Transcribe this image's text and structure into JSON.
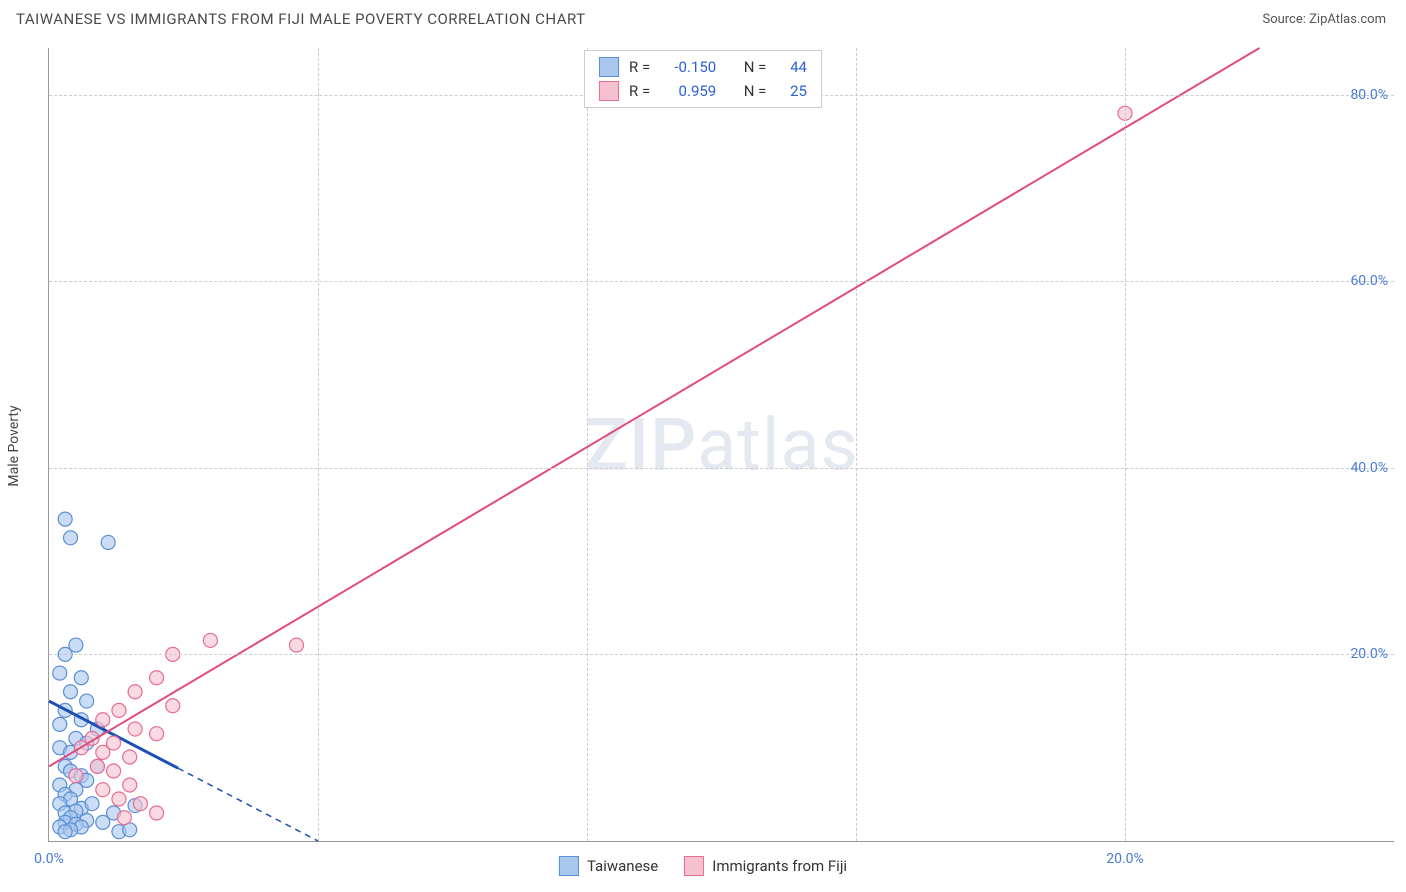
{
  "header": {
    "title": "TAIWANESE VS IMMIGRANTS FROM FIJI MALE POVERTY CORRELATION CHART",
    "source": "Source: ZipAtlas.com"
  },
  "axes": {
    "ylabel": "Male Poverty",
    "xlim": [
      0,
      25
    ],
    "ylim": [
      0,
      85
    ],
    "yticks": [
      {
        "v": 20,
        "label": "20.0%"
      },
      {
        "v": 40,
        "label": "40.0%"
      },
      {
        "v": 60,
        "label": "60.0%"
      },
      {
        "v": 80,
        "label": "80.0%"
      }
    ],
    "xticks": [
      {
        "v": 0,
        "label": "0.0%"
      },
      {
        "v": 20,
        "label": "20.0%"
      }
    ],
    "grid_v": [
      5,
      10,
      15,
      20
    ],
    "grid_color": "#cccccc",
    "axis_color": "#999999",
    "tick_color": "#4a7bd0"
  },
  "series": [
    {
      "key": "taiwanese",
      "label": "Taiwanese",
      "R": "-0.150",
      "N": "44",
      "fill": "#a9c6ec",
      "stroke": "#5a8fd6",
      "line_color": "#1b4fb5",
      "marker_r": 7,
      "marker_opacity": 0.6,
      "trend": {
        "x1": 0,
        "y1": 15,
        "x2": 5,
        "y2": 0,
        "dash_from_x": 2.4
      },
      "points": [
        [
          0.3,
          34.5
        ],
        [
          0.4,
          32.5
        ],
        [
          1.1,
          32.0
        ],
        [
          0.5,
          21.0
        ],
        [
          0.3,
          20.0
        ],
        [
          0.2,
          18.0
        ],
        [
          0.6,
          17.5
        ],
        [
          0.4,
          16.0
        ],
        [
          0.7,
          15.0
        ],
        [
          0.3,
          14.0
        ],
        [
          0.2,
          12.5
        ],
        [
          0.6,
          13.0
        ],
        [
          0.5,
          11.0
        ],
        [
          0.2,
          10.0
        ],
        [
          0.4,
          9.5
        ],
        [
          0.7,
          10.5
        ],
        [
          0.9,
          12.0
        ],
        [
          0.3,
          8.0
        ],
        [
          0.4,
          7.5
        ],
        [
          0.6,
          7.0
        ],
        [
          0.2,
          6.0
        ],
        [
          0.5,
          5.5
        ],
        [
          0.3,
          5.0
        ],
        [
          0.7,
          6.5
        ],
        [
          0.9,
          8.0
        ],
        [
          0.4,
          4.5
        ],
        [
          0.2,
          4.0
        ],
        [
          0.6,
          3.5
        ],
        [
          0.3,
          3.0
        ],
        [
          0.5,
          3.2
        ],
        [
          0.8,
          4.0
        ],
        [
          0.4,
          2.5
        ],
        [
          0.7,
          2.2
        ],
        [
          0.3,
          2.0
        ],
        [
          0.5,
          1.8
        ],
        [
          0.2,
          1.5
        ],
        [
          0.6,
          1.5
        ],
        [
          0.4,
          1.2
        ],
        [
          0.3,
          1.0
        ],
        [
          1.0,
          2.0
        ],
        [
          1.2,
          3.0
        ],
        [
          1.3,
          1.0
        ],
        [
          1.5,
          1.2
        ],
        [
          1.6,
          3.8
        ]
      ]
    },
    {
      "key": "fiji",
      "label": "Immigrants from Fiji",
      "R": "0.959",
      "N": "25",
      "fill": "#f6c1cf",
      "stroke": "#e76d93",
      "line_color": "#e14a7c",
      "marker_r": 7,
      "marker_opacity": 0.6,
      "trend": {
        "x1": 0,
        "y1": 8,
        "x2": 22.5,
        "y2": 85,
        "dash_from_x": null
      },
      "points": [
        [
          20.0,
          78.0
        ],
        [
          4.6,
          21.0
        ],
        [
          3.0,
          21.5
        ],
        [
          2.3,
          20.0
        ],
        [
          2.0,
          17.5
        ],
        [
          1.6,
          16.0
        ],
        [
          2.3,
          14.5
        ],
        [
          1.3,
          14.0
        ],
        [
          1.0,
          13.0
        ],
        [
          1.6,
          12.0
        ],
        [
          2.0,
          11.5
        ],
        [
          0.8,
          11.0
        ],
        [
          1.2,
          10.5
        ],
        [
          0.6,
          10.0
        ],
        [
          1.0,
          9.5
        ],
        [
          1.5,
          9.0
        ],
        [
          0.9,
          8.0
        ],
        [
          1.2,
          7.5
        ],
        [
          0.5,
          7.0
        ],
        [
          1.5,
          6.0
        ],
        [
          1.0,
          5.5
        ],
        [
          1.3,
          4.5
        ],
        [
          1.7,
          4.0
        ],
        [
          2.0,
          3.0
        ],
        [
          1.4,
          2.5
        ]
      ]
    }
  ],
  "stats_box_labels": {
    "R": "R",
    "eq": "=",
    "N": "N"
  },
  "watermark": {
    "zip": "ZIP",
    "atlas": "atlas"
  },
  "colors": {
    "background": "#ffffff",
    "text": "#4a4a4a",
    "watermark": "#cfd8e6"
  }
}
